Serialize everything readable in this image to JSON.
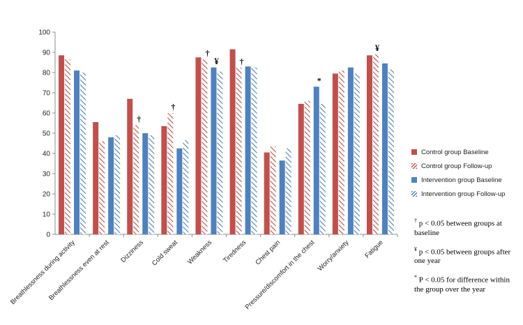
{
  "chart_data": {
    "type": "bar",
    "ylim": [
      0,
      100
    ],
    "yticks": [
      0,
      10,
      20,
      30,
      40,
      50,
      60,
      70,
      80,
      90,
      100
    ],
    "categories": [
      "Breathlessness during activity",
      "Breathlessness even at rest",
      "Dizziness",
      "Cold sweat",
      "Weakness",
      "Tiredness",
      "Chest pain",
      "Pressure/discomfort in the chest",
      "Worry/anxiety",
      "Fatigue"
    ],
    "series": [
      {
        "name": "Control group Baseline",
        "color": "#c0504d",
        "pattern": "solid",
        "values": [
          88.5,
          55.5,
          67,
          53.5,
          87.5,
          91.5,
          40.5,
          64.5,
          79.5,
          88.5
        ]
      },
      {
        "name": "Control group Follow-up",
        "color": "#c0504d",
        "pattern": "hatched",
        "values": [
          86.5,
          46,
          54,
          60,
          86.5,
          82.5,
          43.5,
          66,
          81,
          89
        ]
      },
      {
        "name": "Intervention group Baseline",
        "color": "#4f81bd",
        "pattern": "solid",
        "values": [
          81,
          48,
          50,
          42.5,
          82.5,
          83,
          36.5,
          73,
          82.5,
          84.5
        ]
      },
      {
        "name": "Intervention group Follow-up",
        "color": "#4f81bd",
        "pattern": "hatched",
        "values": [
          80,
          49,
          49,
          46.5,
          80.5,
          82.5,
          42.5,
          64.5,
          79.5,
          81.5
        ]
      }
    ],
    "annotations": [
      {
        "category": "Dizziness",
        "series": 1,
        "symbol": "†"
      },
      {
        "category": "Cold sweat",
        "series": 1,
        "symbol": "†"
      },
      {
        "category": "Weakness",
        "series": 1,
        "symbol": "†"
      },
      {
        "category": "Weakness",
        "series": 2,
        "symbol": "¥"
      },
      {
        "category": "Tiredness",
        "series": 1,
        "symbol": "†"
      },
      {
        "category": "Pressure/discomfort in the chest",
        "series": 2,
        "symbol": "*"
      },
      {
        "category": "Fatigue",
        "series": 1,
        "symbol": "¥"
      }
    ],
    "legend_position": "right",
    "grid": false
  },
  "notes": [
    {
      "symbol": "†",
      "text": "p < 0.05 between groups at baseline"
    },
    {
      "symbol": "¥",
      "text": "p < 0.05 between groups after one year"
    },
    {
      "symbol": "*",
      "text": "P < 0.05 for difference within the group over the year"
    }
  ]
}
